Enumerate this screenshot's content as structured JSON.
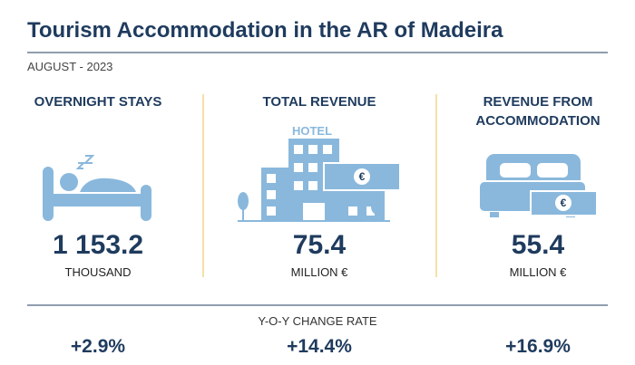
{
  "header": {
    "title": "Tourism Accommodation in the AR of Madeira",
    "subtitle": "AUGUST - 2023"
  },
  "icons": {
    "hotel_sign": "HOTEL",
    "currency": "€"
  },
  "kpis": [
    {
      "title": "OVERNIGHT STAYS",
      "value": "1 153.2",
      "unit": "THOUSAND",
      "change": "+2.9%"
    },
    {
      "title": "TOTAL REVENUE",
      "value": "75.4",
      "unit": "MILLION €",
      "change": "+14.4%"
    },
    {
      "title": "REVENUE FROM ACCOMMODATION",
      "value": "55.4",
      "unit": "MILLION €",
      "change": "+16.9%"
    }
  ],
  "change_label": "Y-O-Y CHANGE RATE"
}
